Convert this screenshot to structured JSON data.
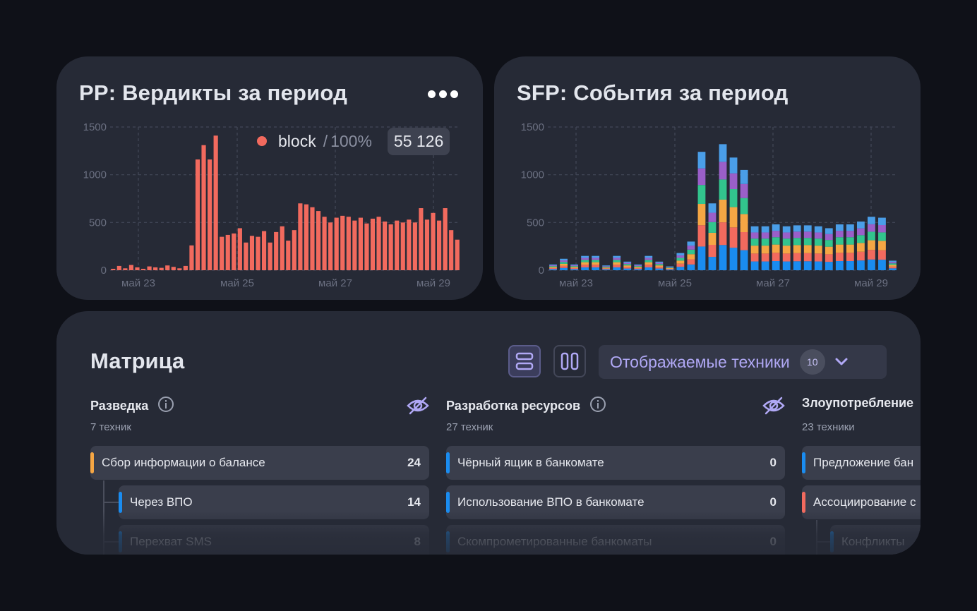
{
  "pp": {
    "title": "PP: Вердикты за период",
    "legend": {
      "name": "block",
      "sep": "/",
      "percent": "100%",
      "total": "55 126",
      "color": "#f26a5e"
    }
  },
  "sfp": {
    "title": "SFP: События за период"
  },
  "chart_data": [
    {
      "type": "bar",
      "title": "PP: Вердикты за период",
      "yticks": [
        "0",
        "500",
        "1000",
        "1500"
      ],
      "ylim": [
        0,
        1500
      ],
      "xticks": [
        "май 23",
        "май 25",
        "май 27",
        "май 29"
      ],
      "grid": true,
      "series": [
        {
          "name": "block",
          "color": "#f26a5e",
          "values": [
            15,
            45,
            20,
            55,
            30,
            15,
            40,
            30,
            25,
            50,
            35,
            20,
            45,
            260,
            1160,
            1310,
            1160,
            1410,
            350,
            370,
            385,
            440,
            290,
            360,
            350,
            410,
            290,
            400,
            460,
            310,
            420,
            700,
            690,
            660,
            620,
            560,
            500,
            550,
            570,
            560,
            520,
            550,
            490,
            540,
            560,
            510,
            480,
            520,
            500,
            530,
            500,
            650,
            530,
            600,
            520,
            650,
            420,
            320
          ]
        }
      ]
    },
    {
      "type": "bar",
      "stacked": true,
      "title": "SFP: События за период",
      "yticks": [
        "0",
        "500",
        "1000",
        "1500"
      ],
      "ylim": [
        0,
        1500
      ],
      "xticks": [
        "май 23",
        "май 25",
        "май 27",
        "май 29"
      ],
      "grid": true,
      "colors": [
        "#1a8cf0",
        "#f26a5e",
        "#f5a644",
        "#32c48d",
        "#9a5fc9",
        "#4a9ee8"
      ],
      "totals": [
        60,
        120,
        60,
        150,
        150,
        50,
        150,
        90,
        60,
        150,
        90,
        40,
        180,
        300,
        1240,
        700,
        1320,
        1180,
        1050,
        460,
        460,
        480,
        460,
        470,
        470,
        460,
        440,
        480,
        480,
        510,
        560,
        550,
        100
      ]
    }
  ],
  "matrix": {
    "title": "Матрица",
    "filter": {
      "label": "Отображаемые техники",
      "count": "10"
    },
    "tactics": [
      {
        "name": "Разведка",
        "count_label": "7 техник",
        "techniques": [
          {
            "label": "Сбор информации о балансе",
            "value": "24",
            "color": "#f5a644"
          },
          {
            "label": "Через ВПО",
            "value": "14",
            "color": "#1a8cf0"
          },
          {
            "label": "Перехват SMS",
            "value": "8",
            "color": "#1a8cf0"
          }
        ]
      },
      {
        "name": "Разработка ресурсов",
        "count_label": "27 техник",
        "techniques": [
          {
            "label": "Чёрный ящик в банкомате",
            "value": "0",
            "color": "#1a8cf0"
          },
          {
            "label": "Использование ВПО в банкомате",
            "value": "0",
            "color": "#1a8cf0"
          },
          {
            "label": "Скомпрометированные банкоматы",
            "value": "0",
            "color": "#1a8cf0"
          }
        ]
      },
      {
        "name": "Злоупотребление",
        "count_label": "23 техники",
        "techniques": [
          {
            "label": "Предложение бан",
            "value": "",
            "color": "#1a8cf0"
          },
          {
            "label": "Ассоциирование с",
            "value": "",
            "color": "#f26a5e"
          },
          {
            "label": "Конфликты",
            "value": "",
            "color": "#1a8cf0"
          }
        ]
      }
    ]
  }
}
